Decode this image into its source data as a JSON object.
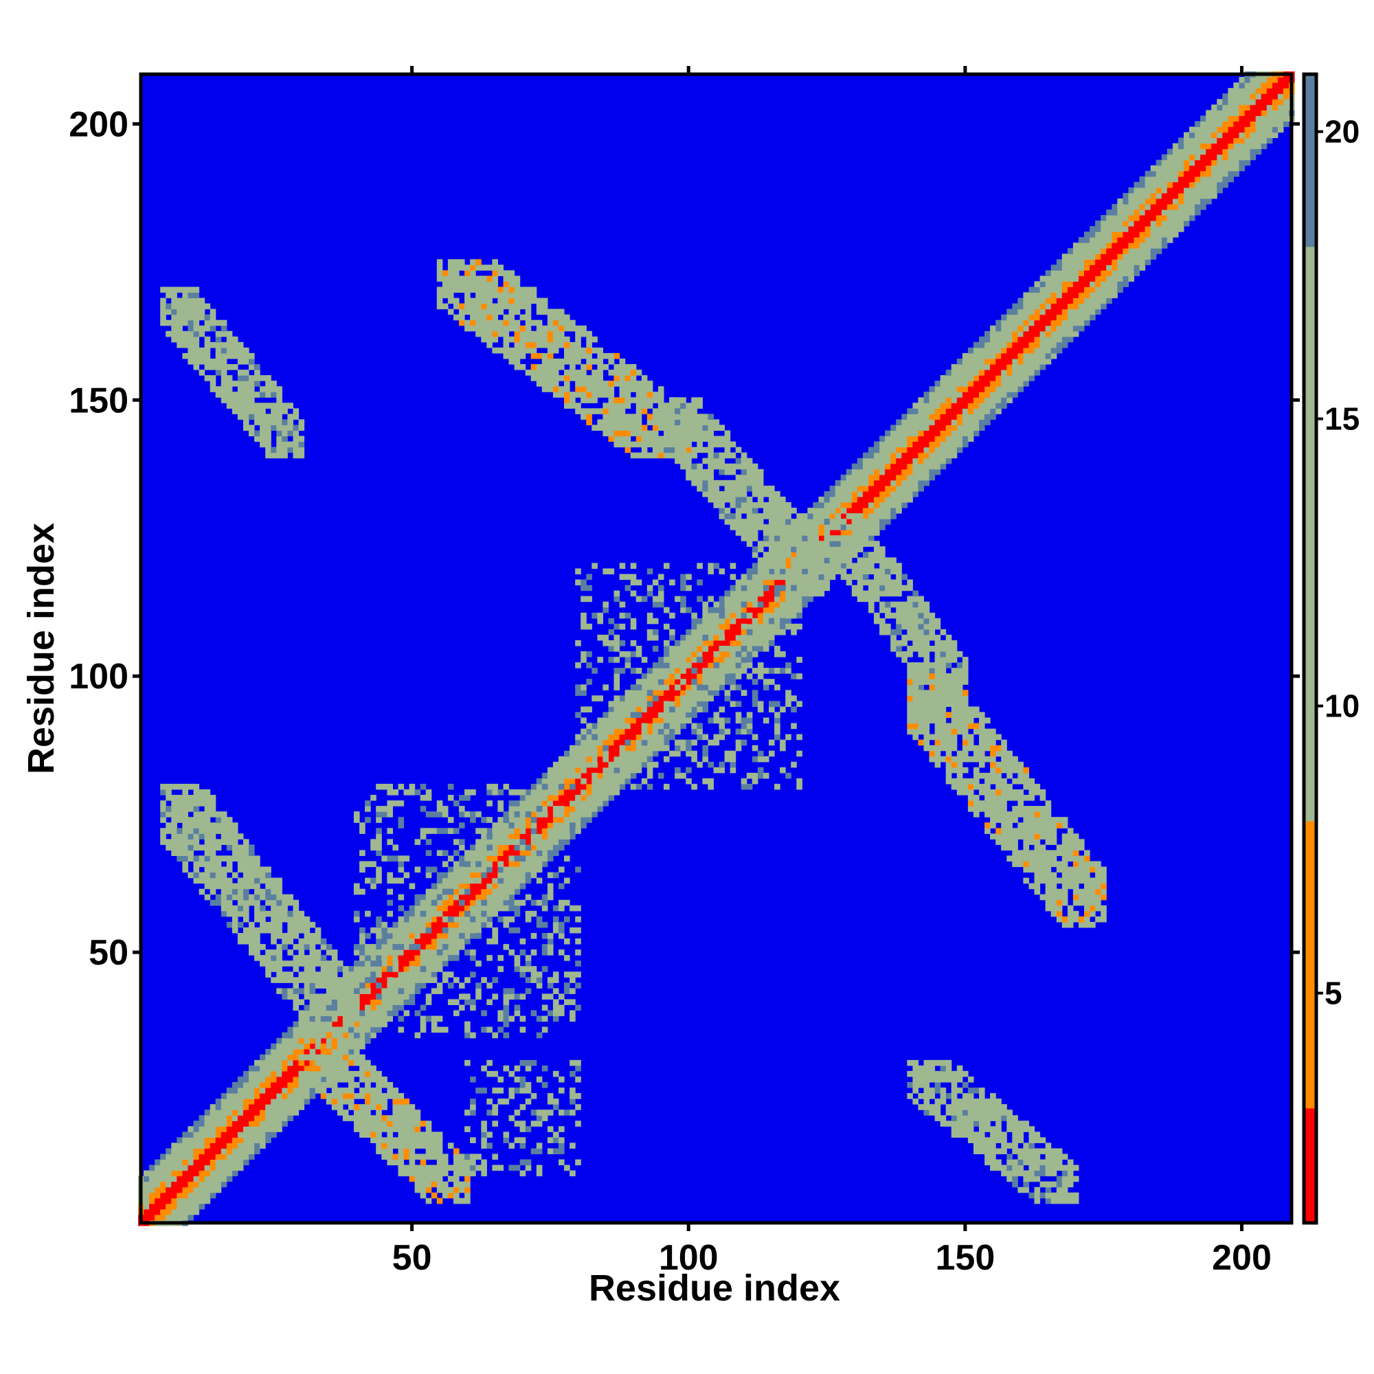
{
  "chart_data": {
    "type": "heatmap",
    "title": "",
    "xlabel": "Residue index",
    "ylabel": "Residue index",
    "xlim": [
      1,
      209
    ],
    "ylim": [
      1,
      209
    ],
    "x_ticks": [
      50,
      100,
      150,
      200
    ],
    "y_ticks": [
      50,
      100,
      150,
      200
    ],
    "tick_labels": [
      "50",
      "100",
      "150",
      "200"
    ],
    "colorbar": {
      "range": [
        1,
        21
      ],
      "ticks": [
        5,
        10,
        15,
        20
      ],
      "tick_labels": [
        "5",
        "10",
        "15",
        "20"
      ]
    },
    "grid": false,
    "colors": {
      "background": "#0000ee",
      "low": "#ff0000",
      "mid": "#ff8c00",
      "high": "#9fb890",
      "outer": "#5a7fa0"
    },
    "diagonal_band": {
      "residue_start": 1,
      "residue_end": 209,
      "core_value": 2,
      "half_width_residues": 8
    },
    "contact_regions": [
      {
        "i_range": [
          5,
          30
        ],
        "j_range": [
          140,
          170
        ],
        "mean_value": 12,
        "orientation": "antiparallel"
      },
      {
        "i_range": [
          55,
          100
        ],
        "j_range": [
          140,
          175
        ],
        "mean_value": 11,
        "orientation": "antiparallel"
      },
      {
        "i_range": [
          5,
          40
        ],
        "j_range": [
          35,
          80
        ],
        "mean_value": 12,
        "orientation": "antiparallel"
      },
      {
        "i_range": [
          30,
          60
        ],
        "j_range": [
          5,
          35
        ],
        "mean_value": 11,
        "orientation": "antiparallel"
      },
      {
        "i_range": [
          40,
          80
        ],
        "j_range": [
          35,
          80
        ],
        "mean_value": 14,
        "orientation": "scattered"
      },
      {
        "i_range": [
          60,
          80
        ],
        "j_range": [
          10,
          30
        ],
        "mean_value": 14,
        "orientation": "scattered"
      },
      {
        "i_range": [
          95,
          125
        ],
        "j_range": [
          115,
          150
        ],
        "mean_value": 12,
        "orientation": "antiparallel"
      },
      {
        "i_range": [
          125,
          150
        ],
        "j_range": [
          95,
          130
        ],
        "mean_value": 12,
        "orientation": "antiparallel"
      },
      {
        "i_range": [
          80,
          120
        ],
        "j_range": [
          80,
          120
        ],
        "mean_value": 14,
        "orientation": "scattered"
      },
      {
        "i_range": [
          140,
          175
        ],
        "j_range": [
          55,
          100
        ],
        "mean_value": 11,
        "orientation": "antiparallel"
      },
      {
        "i_range": [
          140,
          170
        ],
        "j_range": [
          5,
          30
        ],
        "mean_value": 12,
        "orientation": "antiparallel"
      }
    ]
  }
}
